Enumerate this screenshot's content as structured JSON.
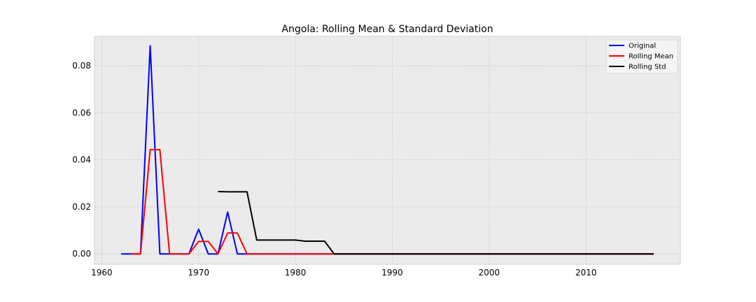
{
  "chart_data": {
    "type": "line",
    "title": "Angola: Rolling Mean & Standard Deviation",
    "xlabel": "",
    "ylabel": "",
    "xlim": [
      1959.25,
      2019.75
    ],
    "ylim": [
      -0.0044,
      0.0925
    ],
    "x_ticks": [
      1960,
      1970,
      1980,
      1990,
      2000,
      2010
    ],
    "y_ticks": [
      0.0,
      0.02,
      0.04,
      0.06,
      0.08
    ],
    "y_tick_labels": [
      "0.00",
      "0.02",
      "0.04",
      "0.06",
      "0.08"
    ],
    "grid": true,
    "legend_position": "top-right",
    "series": [
      {
        "name": "Original",
        "color": "#0000ff",
        "points": [
          [
            1962,
            0
          ],
          [
            1963,
            0
          ],
          [
            1964,
            0
          ],
          [
            1965,
            0.0885
          ],
          [
            1966,
            0
          ],
          [
            1967,
            0
          ],
          [
            1968,
            0
          ],
          [
            1969,
            0
          ],
          [
            1970,
            0.0105
          ],
          [
            1971,
            0
          ],
          [
            1972,
            0
          ],
          [
            1973,
            0.0178
          ],
          [
            1974,
            0
          ],
          [
            1975,
            0
          ],
          [
            1976,
            0
          ],
          [
            1977,
            0
          ],
          [
            1978,
            0
          ],
          [
            1979,
            0
          ],
          [
            1980,
            0
          ],
          [
            1981,
            0
          ],
          [
            1982,
            0
          ],
          [
            1983,
            0
          ],
          [
            1984,
            0
          ],
          [
            1985,
            0
          ],
          [
            1986,
            0
          ],
          [
            1987,
            0
          ],
          [
            1988,
            0
          ],
          [
            1989,
            0
          ],
          [
            1990,
            0
          ],
          [
            1991,
            0
          ],
          [
            1992,
            0
          ],
          [
            1993,
            0
          ],
          [
            1994,
            0
          ],
          [
            1995,
            0
          ],
          [
            1996,
            0
          ],
          [
            1997,
            0
          ],
          [
            1998,
            0
          ],
          [
            1999,
            0
          ],
          [
            2000,
            0
          ],
          [
            2001,
            0
          ],
          [
            2002,
            0
          ],
          [
            2003,
            0
          ],
          [
            2004,
            0
          ],
          [
            2005,
            0
          ],
          [
            2006,
            0
          ],
          [
            2007,
            0
          ],
          [
            2008,
            0
          ],
          [
            2009,
            0
          ],
          [
            2010,
            0
          ],
          [
            2011,
            0
          ],
          [
            2012,
            0
          ],
          [
            2013,
            0
          ],
          [
            2014,
            0
          ],
          [
            2015,
            0
          ],
          [
            2016,
            0
          ],
          [
            2017,
            0
          ]
        ]
      },
      {
        "name": "Rolling Mean",
        "color": "#ff0000",
        "points": [
          [
            1963,
            0
          ],
          [
            1964,
            0
          ],
          [
            1965,
            0.0443
          ],
          [
            1966,
            0.0443
          ],
          [
            1967,
            0
          ],
          [
            1968,
            0
          ],
          [
            1969,
            0
          ],
          [
            1970,
            0.0053
          ],
          [
            1971,
            0.0053
          ],
          [
            1972,
            0
          ],
          [
            1973,
            0.0089
          ],
          [
            1974,
            0.0089
          ],
          [
            1975,
            0
          ],
          [
            1976,
            0
          ],
          [
            1977,
            0
          ],
          [
            1978,
            0
          ],
          [
            1979,
            0
          ],
          [
            1980,
            0
          ],
          [
            1981,
            0
          ],
          [
            1982,
            0
          ],
          [
            1983,
            0
          ],
          [
            1984,
            0
          ],
          [
            1985,
            0
          ],
          [
            1986,
            0
          ],
          [
            1987,
            0
          ],
          [
            1988,
            0
          ],
          [
            1989,
            0
          ],
          [
            1990,
            0
          ],
          [
            1991,
            0
          ],
          [
            1992,
            0
          ],
          [
            1993,
            0
          ],
          [
            1994,
            0
          ],
          [
            1995,
            0
          ],
          [
            1996,
            0
          ],
          [
            1997,
            0
          ],
          [
            1998,
            0
          ],
          [
            1999,
            0
          ],
          [
            2000,
            0
          ],
          [
            2001,
            0
          ],
          [
            2002,
            0
          ],
          [
            2003,
            0
          ],
          [
            2004,
            0
          ],
          [
            2005,
            0
          ],
          [
            2006,
            0
          ],
          [
            2007,
            0
          ],
          [
            2008,
            0
          ],
          [
            2009,
            0
          ],
          [
            2010,
            0
          ],
          [
            2011,
            0
          ],
          [
            2012,
            0
          ],
          [
            2013,
            0
          ],
          [
            2014,
            0
          ],
          [
            2015,
            0
          ],
          [
            2016,
            0
          ],
          [
            2017,
            0
          ]
        ]
      },
      {
        "name": "Rolling Std",
        "color": "#000000",
        "points": [
          [
            1972,
            0.0265
          ],
          [
            1973,
            0.0264
          ],
          [
            1974,
            0.0264
          ],
          [
            1975,
            0.0264
          ],
          [
            1976,
            0.0059
          ],
          [
            1977,
            0.0059
          ],
          [
            1978,
            0.0059
          ],
          [
            1979,
            0.0059
          ],
          [
            1980,
            0.0059
          ],
          [
            1981,
            0.0054
          ],
          [
            1982,
            0.0054
          ],
          [
            1983,
            0.0054
          ],
          [
            1984,
            0
          ],
          [
            1985,
            0
          ],
          [
            1986,
            0
          ],
          [
            1987,
            0
          ],
          [
            1988,
            0
          ],
          [
            1989,
            0
          ],
          [
            1990,
            0
          ],
          [
            1991,
            0
          ],
          [
            1992,
            0
          ],
          [
            1993,
            0
          ],
          [
            1994,
            0
          ],
          [
            1995,
            0
          ],
          [
            1996,
            0
          ],
          [
            1997,
            0
          ],
          [
            1998,
            0
          ],
          [
            1999,
            0
          ],
          [
            2000,
            0
          ],
          [
            2001,
            0
          ],
          [
            2002,
            0
          ],
          [
            2003,
            0
          ],
          [
            2004,
            0
          ],
          [
            2005,
            0
          ],
          [
            2006,
            0
          ],
          [
            2007,
            0
          ],
          [
            2008,
            0
          ],
          [
            2009,
            0
          ],
          [
            2010,
            0
          ],
          [
            2011,
            0
          ],
          [
            2012,
            0
          ],
          [
            2013,
            0
          ],
          [
            2014,
            0
          ],
          [
            2015,
            0
          ],
          [
            2016,
            0
          ],
          [
            2017,
            0
          ]
        ]
      }
    ]
  }
}
